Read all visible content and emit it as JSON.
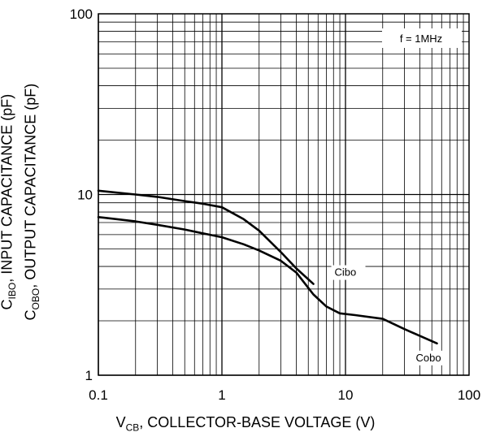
{
  "chart_data": {
    "type": "line",
    "xscale": "log",
    "yscale": "log",
    "xlim": [
      0.1,
      100
    ],
    "ylim": [
      1,
      100
    ],
    "grid": true,
    "xticks": [
      "0.1",
      "1",
      "10",
      "100"
    ],
    "yticks": [
      "1",
      "10",
      "100"
    ],
    "xlabel": {
      "pre": "V",
      "sub": "CB",
      "post": ", COLLECTOR-BASE VOLTAGE (V)"
    },
    "ylabel": {
      "line1": {
        "pre": "C",
        "sub": "IBO",
        "post": ", INPUT CAPACITANCE (pF)"
      },
      "line2": {
        "pre": "C",
        "sub": "OBO",
        "post": ", OUTPUT CAPACITANCE (pF)"
      }
    },
    "annotation": "f = 1MHz",
    "series": [
      {
        "name": "Cibo",
        "x": [
          0.1,
          0.2,
          0.3,
          0.5,
          0.7,
          1.0,
          1.5,
          2.0,
          3.0,
          4.0,
          5.5
        ],
        "y": [
          10.5,
          10.0,
          9.7,
          9.2,
          8.9,
          8.5,
          7.3,
          6.3,
          4.8,
          3.9,
          3.2
        ]
      },
      {
        "name": "Cobo",
        "x": [
          0.1,
          0.2,
          0.3,
          0.5,
          0.7,
          1.0,
          1.5,
          2.0,
          3.0,
          4.0,
          5.5,
          7.0,
          9.0,
          12.0,
          20.0,
          30.0,
          40.0,
          55.0
        ],
        "y": [
          7.5,
          7.1,
          6.8,
          6.4,
          6.1,
          5.8,
          5.3,
          4.9,
          4.3,
          3.7,
          2.8,
          2.4,
          2.2,
          2.15,
          2.05,
          1.8,
          1.65,
          1.5
        ]
      }
    ]
  }
}
